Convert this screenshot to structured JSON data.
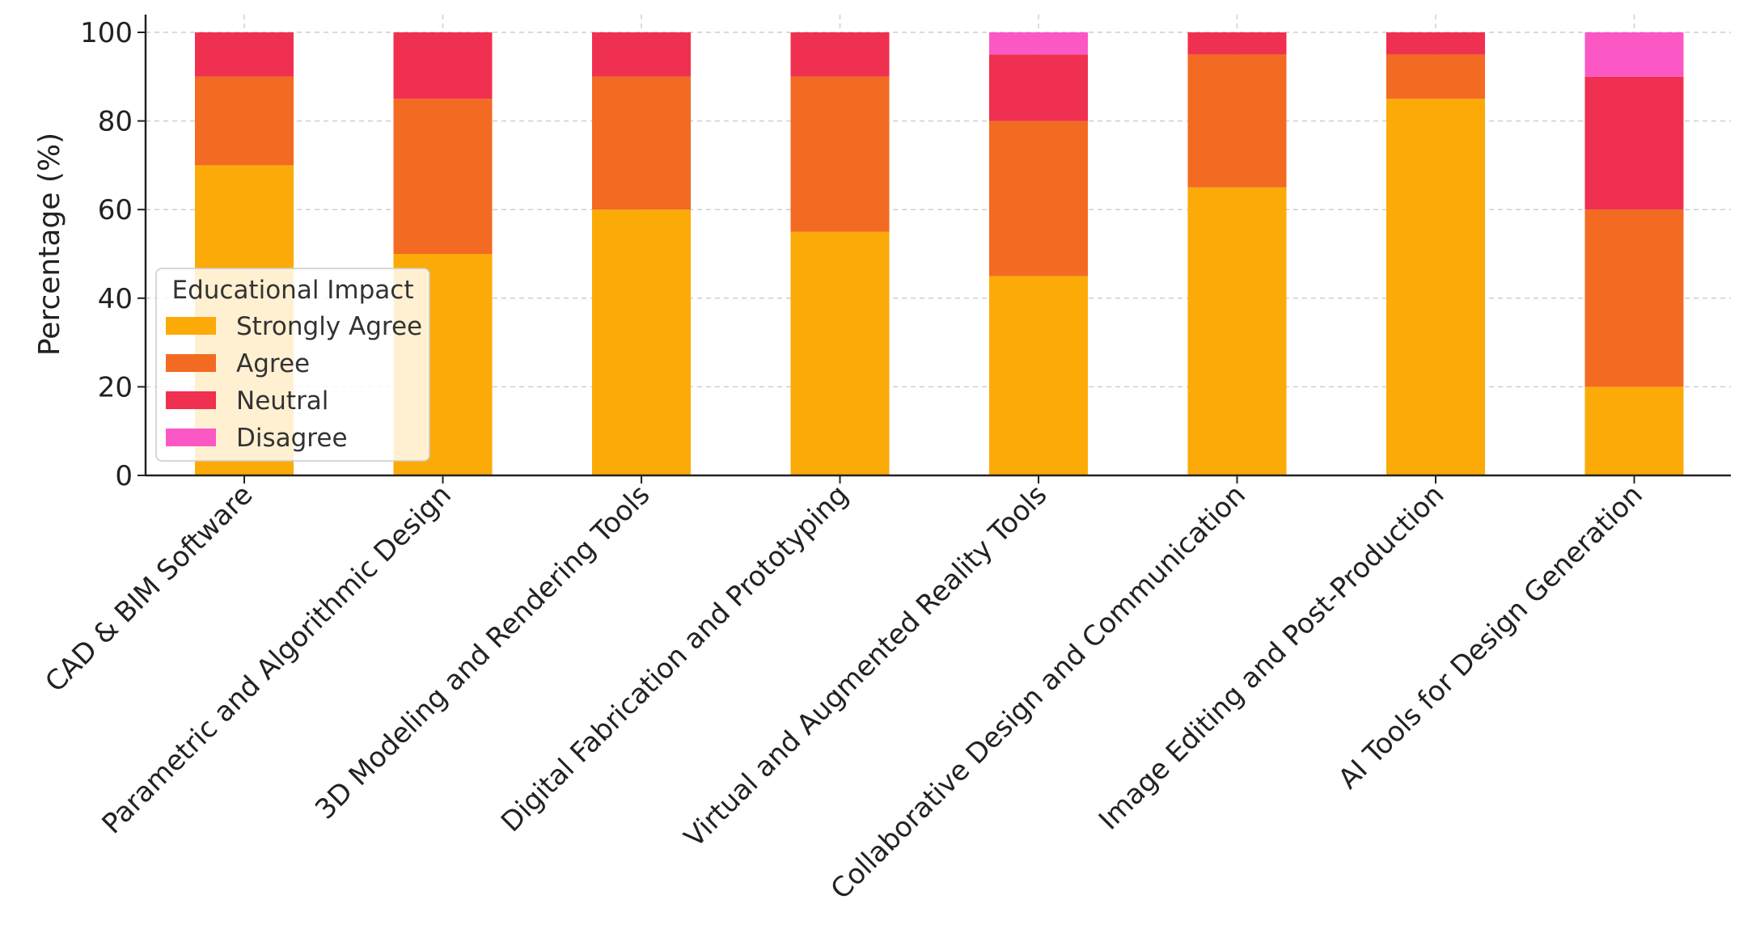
{
  "chart_data": {
    "type": "bar",
    "stacked": true,
    "title": "",
    "xlabel": "",
    "ylabel": "Percentage (%)",
    "ylim": [
      0,
      100
    ],
    "yticks": [
      0,
      20,
      40,
      60,
      80,
      100
    ],
    "grid": true,
    "categories": [
      "CAD & BIM Software",
      "Parametric and Algorithmic Design",
      "3D Modeling and Rendering Tools",
      "Digital Fabrication and Prototyping",
      "Virtual and Augmented Reality Tools",
      "Collaborative Design and Communication",
      "Image Editing and Post-Production",
      "AI Tools for Design Generation"
    ],
    "legend": {
      "title": "Educational Impact",
      "placement": "center-left"
    },
    "series": [
      {
        "name": "Strongly Agree",
        "color": "#FBAA07",
        "values": [
          70,
          50,
          60,
          55,
          45,
          65,
          85,
          20
        ]
      },
      {
        "name": "Agree",
        "color": "#F36A22",
        "values": [
          20,
          35,
          30,
          35,
          35,
          30,
          10,
          40
        ]
      },
      {
        "name": "Neutral",
        "color": "#F03050",
        "values": [
          10,
          15,
          10,
          10,
          15,
          5,
          5,
          30
        ]
      },
      {
        "name": "Disagree",
        "color": "#FB58C5",
        "values": [
          0,
          0,
          0,
          0,
          5,
          0,
          0,
          10
        ]
      }
    ]
  }
}
